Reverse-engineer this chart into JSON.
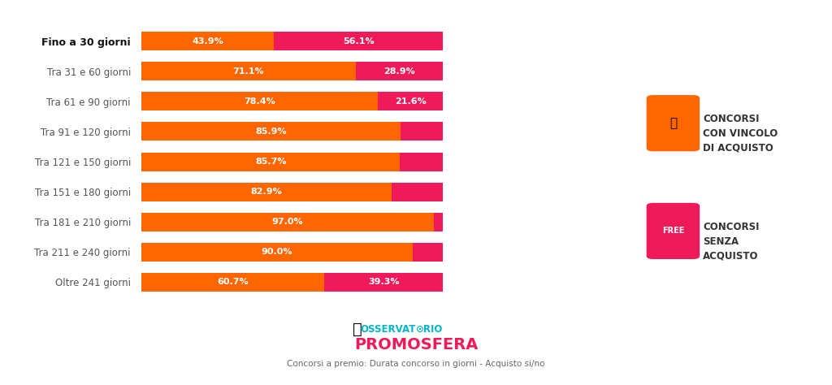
{
  "categories": [
    "Fino a 30 giorni",
    "Tra 31 e 60 giorni",
    "Tra 61 e 90 giorni",
    "Tra 91 e 120 giorni",
    "Tra 121 e 150 giorni",
    "Tra 151 e 180 giorni",
    "Tra 181 e 210 giorni",
    "Tra 211 e 240 giorni",
    "Oltre 241 giorni"
  ],
  "orange_values": [
    43.9,
    71.1,
    78.4,
    85.9,
    85.7,
    82.9,
    97.0,
    90.0,
    60.7
  ],
  "pink_values": [
    56.1,
    28.9,
    21.6,
    14.1,
    14.3,
    17.1,
    3.0,
    10.0,
    39.3
  ],
  "orange_labels": [
    "43.9%",
    "71.1%",
    "78.4%",
    "85.9%",
    "85.7%",
    "82.9%",
    "97.0%",
    "90.0%",
    "60.7%"
  ],
  "pink_labels": [
    "56.1%",
    "28.9%",
    "21.6%",
    "",
    "",
    "",
    "",
    "",
    "39.3%"
  ],
  "show_pink_small": [
    false,
    false,
    false,
    false,
    false,
    false,
    false,
    false,
    false
  ],
  "orange_color": "#FF6600",
  "pink_color": "#F0195A",
  "bar_height": 0.62,
  "background_color": "#FFFFFF",
  "subtitle": "Concorsi a premio: Durata concorso in giorni - Acquisto si/no",
  "xlim": 160,
  "osservatorio_color": "#00B5CC",
  "promosfera_color": "#F0195A",
  "text_color": "#555555",
  "bold_idx": 0
}
